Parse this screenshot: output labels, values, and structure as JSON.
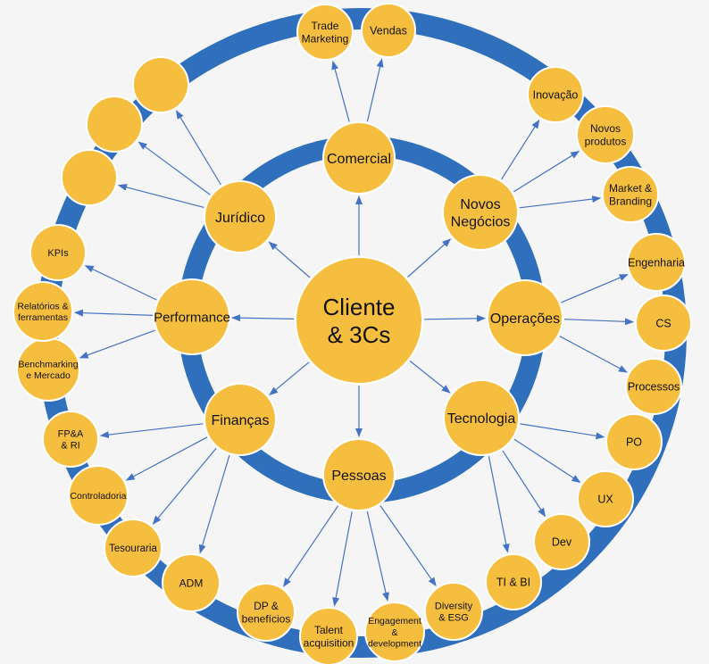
{
  "colors": {
    "ring": "#2f6fbc",
    "node": "#f6be3e",
    "node_stroke": "#ffffff",
    "arrow": "#4472c4",
    "text": "#111111",
    "background": "#f5f5f5"
  },
  "center": {
    "id": "center",
    "label": [
      "Cliente",
      "& 3Cs"
    ]
  },
  "areas": [
    {
      "id": "comercial",
      "label": [
        "Comercial"
      ]
    },
    {
      "id": "novos",
      "label": [
        "Novos",
        "Negócios"
      ]
    },
    {
      "id": "operacoes",
      "label": [
        "Operações"
      ]
    },
    {
      "id": "tecnologia",
      "label": [
        "Tecnologia"
      ]
    },
    {
      "id": "pessoas",
      "label": [
        "Pessoas"
      ]
    },
    {
      "id": "financas",
      "label": [
        "Finanças"
      ]
    },
    {
      "id": "performance",
      "label": [
        "Performance"
      ]
    },
    {
      "id": "juridico",
      "label": [
        "Jurídico"
      ]
    }
  ],
  "subareas": [
    {
      "id": "trade",
      "parent": "comercial",
      "label": [
        "Trade",
        "Marketing"
      ]
    },
    {
      "id": "vendas",
      "parent": "comercial",
      "label": [
        "Vendas"
      ]
    },
    {
      "id": "inovacao",
      "parent": "novos",
      "label": [
        "Inovação"
      ]
    },
    {
      "id": "novos-produtos",
      "parent": "novos",
      "label": [
        "Novos",
        "produtos"
      ]
    },
    {
      "id": "market",
      "parent": "novos",
      "label": [
        "Market &",
        "Branding"
      ]
    },
    {
      "id": "engenharia",
      "parent": "operacoes",
      "label": [
        "Engenharia"
      ]
    },
    {
      "id": "cs",
      "parent": "operacoes",
      "label": [
        "CS"
      ]
    },
    {
      "id": "processos",
      "parent": "operacoes",
      "label": [
        "Processos"
      ]
    },
    {
      "id": "po",
      "parent": "tecnologia",
      "label": [
        "PO"
      ]
    },
    {
      "id": "ux",
      "parent": "tecnologia",
      "label": [
        "UX"
      ]
    },
    {
      "id": "dev",
      "parent": "tecnologia",
      "label": [
        "Dev"
      ]
    },
    {
      "id": "ti-bi",
      "parent": "tecnologia",
      "label": [
        "TI & BI"
      ]
    },
    {
      "id": "diversity",
      "parent": "pessoas",
      "label": [
        "Diversity",
        "& ESG"
      ]
    },
    {
      "id": "engagement",
      "parent": "pessoas",
      "label": [
        "Engagement",
        "&",
        "development"
      ]
    },
    {
      "id": "talent",
      "parent": "pessoas",
      "label": [
        "Talent",
        "acquisition"
      ]
    },
    {
      "id": "dp",
      "parent": "pessoas",
      "label": [
        "DP &",
        "benefícios"
      ]
    },
    {
      "id": "adm",
      "parent": "financas",
      "label": [
        "ADM"
      ]
    },
    {
      "id": "tesouraria",
      "parent": "financas",
      "label": [
        "Tesouraria"
      ]
    },
    {
      "id": "controladoria",
      "parent": "financas",
      "label": [
        "Controladoria"
      ]
    },
    {
      "id": "fpa",
      "parent": "financas",
      "label": [
        "FP&A",
        "& RI"
      ]
    },
    {
      "id": "benchmarking",
      "parent": "performance",
      "label": [
        "Benchmarking",
        "e Mercado"
      ]
    },
    {
      "id": "relatorios",
      "parent": "performance",
      "label": [
        "Relatórios &",
        "ferramentas"
      ]
    },
    {
      "id": "kpis",
      "parent": "performance",
      "label": [
        "KPIs"
      ]
    },
    {
      "id": "blank-1",
      "parent": "juridico",
      "label": []
    },
    {
      "id": "blank-2",
      "parent": "juridico",
      "label": []
    },
    {
      "id": "blank-3",
      "parent": "juridico",
      "label": []
    }
  ]
}
